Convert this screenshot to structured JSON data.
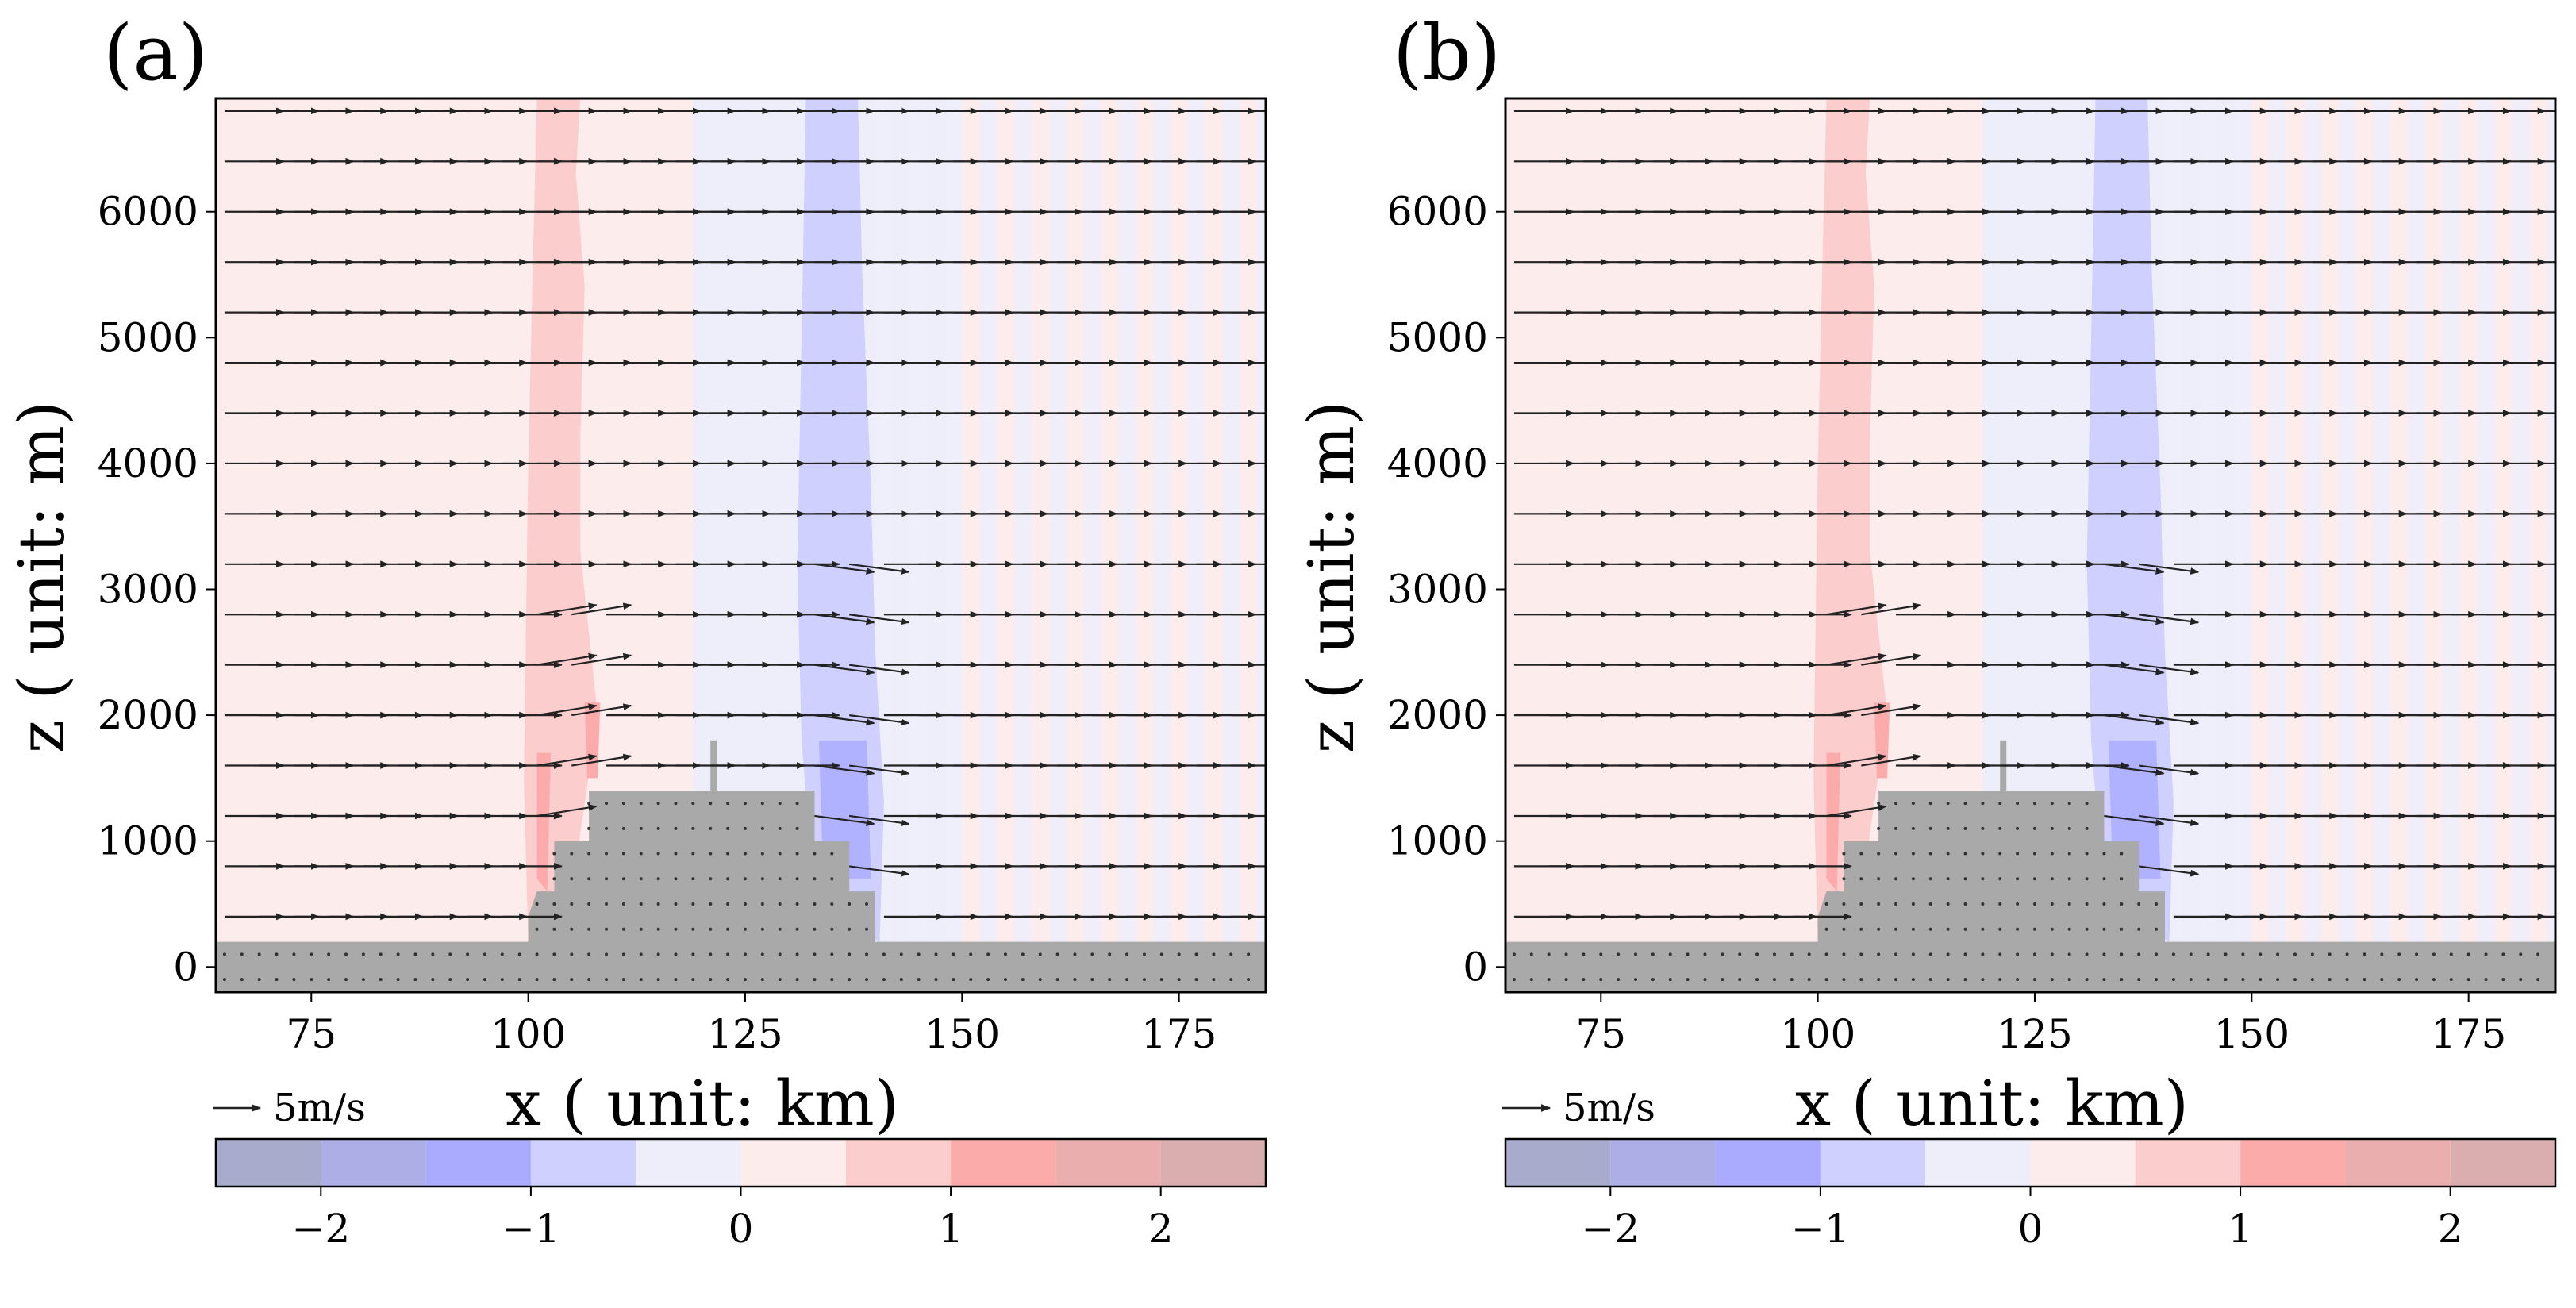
{
  "figure": {
    "panels": [
      "(a)",
      "(b)"
    ]
  },
  "chart_data": [
    {
      "type": "heatmap",
      "panel_label": "(a)",
      "xlabel": "x ( unit: km)",
      "ylabel": "z ( unit: m)",
      "xlim": [
        64,
        185
      ],
      "ylim": [
        -200,
        6900
      ],
      "xticks": [
        75,
        100,
        125,
        150,
        175
      ],
      "yticks": [
        0,
        1000,
        2000,
        3000,
        4000,
        5000,
        6000
      ],
      "field": "vertical wind perturbation (shaded) with wind vectors",
      "positive_band_x": [
        100,
        106
      ],
      "negative_band_x": [
        132,
        139
      ],
      "terrain_profile": [
        [
          64,
          200
        ],
        [
          100,
          200
        ],
        [
          100,
          400
        ],
        [
          101,
          600
        ],
        [
          103,
          600
        ],
        [
          103,
          1000
        ],
        [
          107,
          1000
        ],
        [
          107,
          1400
        ],
        [
          133,
          1400
        ],
        [
          133,
          1000
        ],
        [
          137,
          1000
        ],
        [
          137,
          600
        ],
        [
          140,
          600
        ],
        [
          140,
          200
        ],
        [
          185,
          200
        ]
      ],
      "quiver_reference": {
        "label": "5m/s",
        "speed": 5
      },
      "colorbar": {
        "ticks": [
          -2,
          -1,
          0,
          1,
          2
        ],
        "tick_labels": [
          "−2",
          "−1",
          "0",
          "1",
          "2"
        ],
        "range": [
          -2.5,
          2.5
        ],
        "levels": [
          -2.5,
          -2,
          -1.5,
          -1,
          -0.5,
          0,
          0.5,
          1,
          1.5,
          2,
          2.5
        ],
        "colors": [
          "#a8abcc",
          "#adaee6",
          "#aaabff",
          "#cfd0fd",
          "#eeeefb",
          "#fdecec",
          "#fbcdcd",
          "#fcabab",
          "#eaaeae",
          "#daaeae"
        ]
      }
    },
    {
      "type": "heatmap",
      "panel_label": "(b)",
      "xlabel": "x ( unit: km)",
      "ylabel": "z ( unit: m)",
      "xlim": [
        64,
        185
      ],
      "ylim": [
        -200,
        6900
      ],
      "xticks": [
        75,
        100,
        125,
        150,
        175
      ],
      "yticks": [
        0,
        1000,
        2000,
        3000,
        4000,
        5000,
        6000
      ],
      "field": "vertical wind perturbation (shaded) with wind vectors",
      "positive_band_x": [
        100,
        106
      ],
      "negative_band_x": [
        132,
        139
      ],
      "terrain_profile": [
        [
          64,
          200
        ],
        [
          100,
          200
        ],
        [
          100,
          400
        ],
        [
          101,
          600
        ],
        [
          103,
          600
        ],
        [
          103,
          1000
        ],
        [
          107,
          1000
        ],
        [
          107,
          1400
        ],
        [
          133,
          1400
        ],
        [
          133,
          1000
        ],
        [
          137,
          1000
        ],
        [
          137,
          600
        ],
        [
          140,
          600
        ],
        [
          140,
          200
        ],
        [
          185,
          200
        ]
      ],
      "quiver_reference": {
        "label": "5m/s",
        "speed": 5
      },
      "colorbar": {
        "ticks": [
          -2,
          -1,
          0,
          1,
          2
        ],
        "tick_labels": [
          "−2",
          "−1",
          "0",
          "1",
          "2"
        ],
        "range": [
          -2.5,
          2.5
        ],
        "levels": [
          -2.5,
          -2,
          -1.5,
          -1,
          -0.5,
          0,
          0.5,
          1,
          1.5,
          2,
          2.5
        ],
        "colors": [
          "#a8abcc",
          "#adaee6",
          "#aaabff",
          "#cfd0fd",
          "#eeeefb",
          "#fdecec",
          "#fbcdcd",
          "#fcabab",
          "#eaaeae",
          "#daaeae"
        ]
      }
    }
  ]
}
